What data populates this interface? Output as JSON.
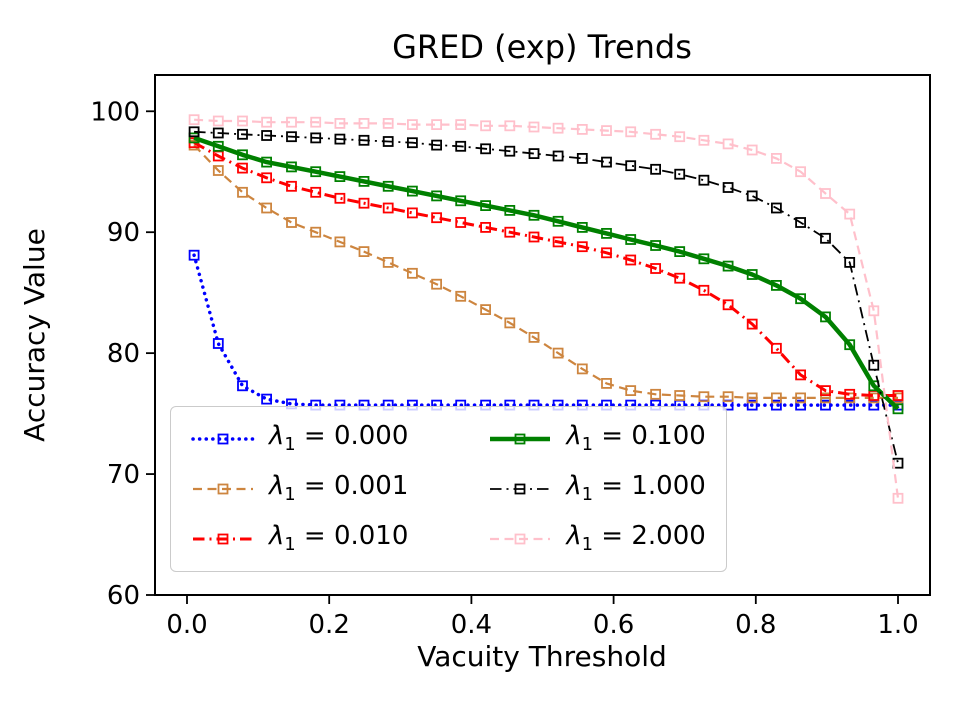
{
  "chart_data": {
    "type": "line",
    "title": "GRED (exp) Trends",
    "xlabel": "Vacuity Threshold",
    "ylabel": "Accuracy Value",
    "xlim": [
      -0.045,
      1.045
    ],
    "ylim": [
      60,
      103
    ],
    "grid": false,
    "legend": {
      "location": "lower left",
      "columns": 2
    },
    "xticks": {
      "values": [
        0.0,
        0.2,
        0.4,
        0.6,
        0.8,
        1.0
      ],
      "labels": [
        "0.0",
        "0.2",
        "0.4",
        "0.6",
        "0.8",
        "1.0"
      ]
    },
    "yticks": {
      "values": [
        60,
        70,
        80,
        90,
        100
      ],
      "labels": [
        "60",
        "70",
        "80",
        "90",
        "100"
      ]
    },
    "x": [
      0.01,
      0.044,
      0.078,
      0.112,
      0.147,
      0.181,
      0.215,
      0.249,
      0.283,
      0.317,
      0.351,
      0.385,
      0.42,
      0.454,
      0.488,
      0.522,
      0.556,
      0.59,
      0.624,
      0.659,
      0.693,
      0.727,
      0.761,
      0.795,
      0.829,
      0.863,
      0.898,
      0.932,
      0.966,
      1.0
    ],
    "series": [
      {
        "name": "λ₁ = 0.000",
        "color": "#0000ff",
        "style": "dotted",
        "width": 3.5,
        "marker": "square",
        "values": [
          88.1,
          80.8,
          77.3,
          76.2,
          75.8,
          75.7,
          75.7,
          75.7,
          75.7,
          75.7,
          75.7,
          75.7,
          75.7,
          75.7,
          75.7,
          75.7,
          75.7,
          75.7,
          75.7,
          75.7,
          75.7,
          75.7,
          75.7,
          75.7,
          75.7,
          75.7,
          75.7,
          75.7,
          75.7,
          75.7
        ]
      },
      {
        "name": "λ₁ = 0.001",
        "color": "#cd853f",
        "style": "dashed",
        "width": 2.2,
        "marker": "square",
        "values": [
          97.2,
          95.1,
          93.3,
          92.0,
          90.8,
          90.0,
          89.2,
          88.4,
          87.5,
          86.6,
          85.7,
          84.7,
          83.6,
          82.5,
          81.3,
          80.0,
          78.7,
          77.5,
          76.9,
          76.6,
          76.5,
          76.4,
          76.4,
          76.3,
          76.3,
          76.3,
          76.3,
          76.3,
          76.3,
          76.3
        ]
      },
      {
        "name": "λ₁ = 0.010",
        "color": "#ff0000",
        "style": "dashdot",
        "width": 3.0,
        "marker": "square",
        "values": [
          97.4,
          96.3,
          95.3,
          94.5,
          93.8,
          93.3,
          92.8,
          92.4,
          92.0,
          91.6,
          91.2,
          90.8,
          90.4,
          90.0,
          89.6,
          89.2,
          88.8,
          88.3,
          87.7,
          87.0,
          86.2,
          85.2,
          84.0,
          82.4,
          80.4,
          78.2,
          76.9,
          76.6,
          76.5,
          76.5
        ]
      },
      {
        "name": "λ₁ = 0.100",
        "color": "#008000",
        "style": "solid",
        "width": 4.5,
        "marker": "square",
        "values": [
          97.8,
          97.1,
          96.4,
          95.8,
          95.4,
          95.0,
          94.6,
          94.2,
          93.8,
          93.4,
          93.0,
          92.6,
          92.2,
          91.8,
          91.4,
          90.9,
          90.4,
          89.9,
          89.4,
          88.9,
          88.4,
          87.8,
          87.2,
          86.5,
          85.6,
          84.5,
          83.0,
          80.7,
          77.3,
          75.4
        ]
      },
      {
        "name": "λ₁ = 1.000",
        "color": "#000000",
        "style": "dashdot",
        "width": 1.8,
        "marker": "square",
        "values": [
          98.3,
          98.2,
          98.1,
          98.0,
          97.9,
          97.8,
          97.7,
          97.6,
          97.5,
          97.4,
          97.2,
          97.1,
          96.9,
          96.7,
          96.5,
          96.3,
          96.1,
          95.8,
          95.5,
          95.2,
          94.8,
          94.3,
          93.7,
          93.0,
          92.0,
          90.8,
          89.5,
          87.5,
          79.0,
          70.9
        ]
      },
      {
        "name": "λ₁ = 2.000",
        "color": "#ffc0cb",
        "style": "dashed",
        "width": 2.2,
        "marker": "square",
        "values": [
          99.3,
          99.2,
          99.2,
          99.1,
          99.1,
          99.1,
          99.0,
          99.0,
          99.0,
          98.9,
          98.9,
          98.9,
          98.8,
          98.8,
          98.7,
          98.6,
          98.5,
          98.4,
          98.3,
          98.1,
          97.9,
          97.6,
          97.3,
          96.8,
          96.1,
          95.0,
          93.2,
          91.5,
          83.5,
          68.0
        ]
      }
    ]
  }
}
